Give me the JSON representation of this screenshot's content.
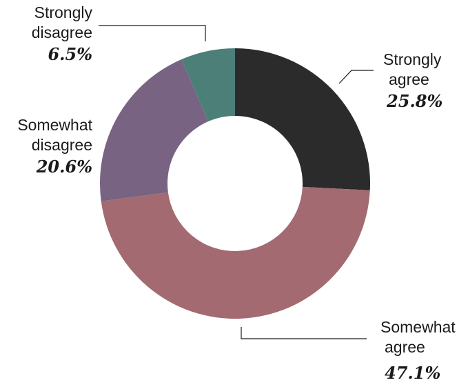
{
  "chart_data": {
    "type": "pie",
    "donut": true,
    "categories": [
      "Strongly agree",
      "Somewhat agree",
      "Somewhat disagree",
      "Strongly disagree"
    ],
    "values": [
      25.8,
      47.1,
      20.6,
      6.5
    ],
    "series": [
      {
        "name_lines": [
          "Strongly",
          "agree"
        ],
        "value": 25.8,
        "pct_label": "25.8%",
        "color": "#2b2b2b"
      },
      {
        "name_lines": [
          "Somewhat",
          "agree"
        ],
        "value": 47.1,
        "pct_label": "47.1%",
        "color": "#a36a72"
      },
      {
        "name_lines": [
          "Somewhat",
          "disagree"
        ],
        "value": 20.6,
        "pct_label": "20.6%",
        "color": "#786383"
      },
      {
        "name_lines": [
          "Strongly",
          "disagree"
        ],
        "value": 6.5,
        "pct_label": "6.5%",
        "color": "#4d7f79"
      }
    ],
    "title": "",
    "legend": "none"
  }
}
